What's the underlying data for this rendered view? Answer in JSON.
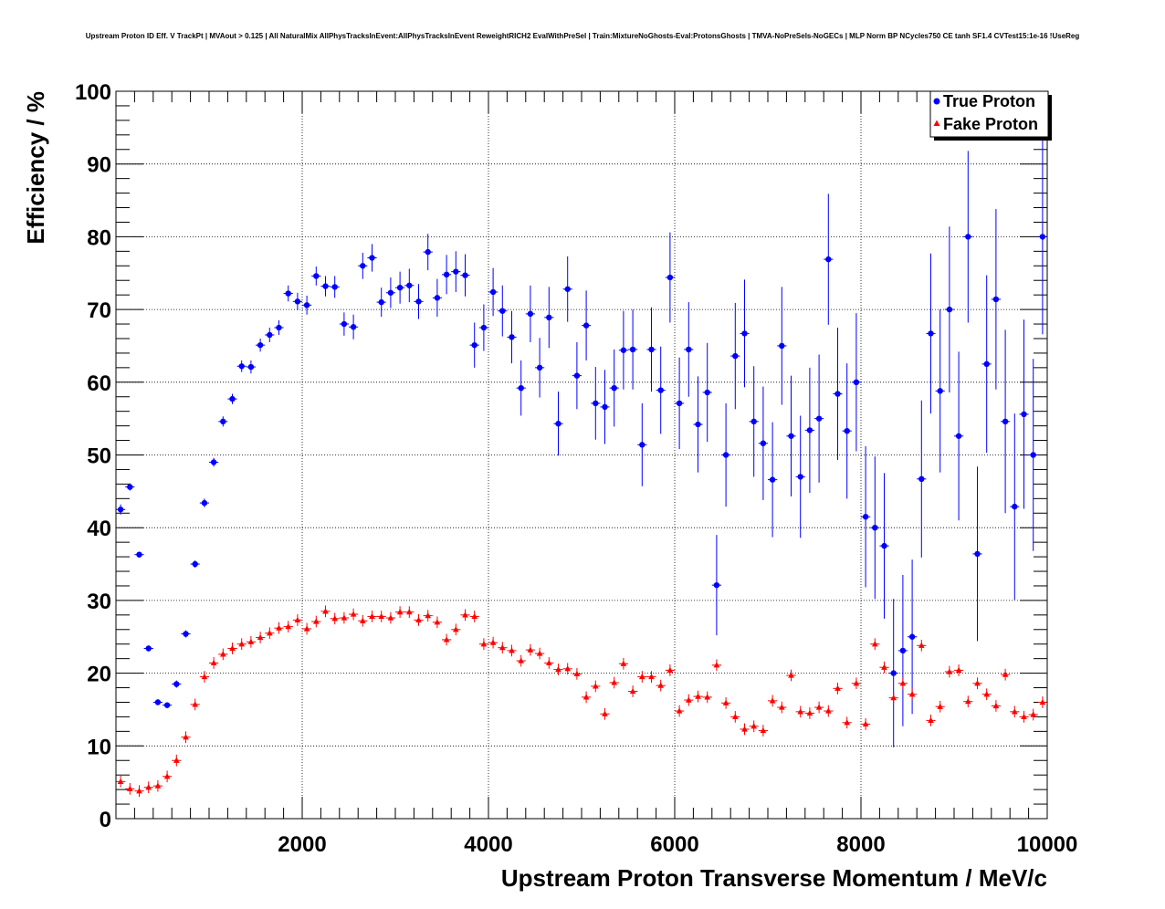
{
  "chart_data": {
    "type": "scatter",
    "title": "Upstream Proton ID Eff. V TrackPt | MVAout > 0.125 | All NaturalMix AllPhysTracksInEvent:AllPhysTracksInEvent ReweightRICH2 EvalWithPreSel | Train:MixtureNoGhosts-Eval:ProtonsGhosts | TMVA-NoPreSels-NoGECs | MLP Norm BP NCycles750 CE tanh SF1.4 CVTest15:1e-16 !UseReg",
    "xlabel": "Upstream Proton Transverse Momentum / MeV/c",
    "ylabel": "Efficiency / %",
    "xlim": [
      0,
      10000
    ],
    "ylim": [
      0,
      100
    ],
    "xticks": [
      2000,
      4000,
      6000,
      8000,
      10000
    ],
    "yticks": [
      0,
      10,
      20,
      30,
      40,
      50,
      60,
      70,
      80,
      90,
      100
    ],
    "grid": true,
    "legend_position": "top-right",
    "series": [
      {
        "name": "True Proton",
        "color": "#0000ff",
        "marker": "circle",
        "x": [
          50,
          150,
          250,
          350,
          450,
          550,
          650,
          750,
          850,
          950,
          1050,
          1150,
          1250,
          1350,
          1450,
          1550,
          1650,
          1750,
          1850,
          1950,
          2050,
          2150,
          2250,
          2350,
          2450,
          2550,
          2650,
          2750,
          2850,
          2950,
          3050,
          3150,
          3250,
          3350,
          3450,
          3550,
          3650,
          3750,
          3850,
          3950,
          4050,
          4150,
          4250,
          4350,
          4450,
          4550,
          4650,
          4750,
          4850,
          4950,
          5050,
          5150,
          5250,
          5350,
          5450,
          5550,
          5650,
          5750,
          5850,
          5950,
          6050,
          6150,
          6250,
          6350,
          6450,
          6550,
          6650,
          6750,
          6850,
          6950,
          7050,
          7150,
          7250,
          7350,
          7450,
          7550,
          7650,
          7750,
          7850,
          7950,
          8050,
          8150,
          8250,
          8350,
          8450,
          8550,
          8650,
          8750,
          8850,
          8950,
          9050,
          9150,
          9250,
          9350,
          9450,
          9550,
          9650,
          9750,
          9850,
          9950
        ],
        "y": [
          42.5,
          45.6,
          36.3,
          23.4,
          16.0,
          15.6,
          18.5,
          25.4,
          35.0,
          43.4,
          49.0,
          54.6,
          57.7,
          62.2,
          62.1,
          65.1,
          66.5,
          67.5,
          72.2,
          71.1,
          70.6,
          74.6,
          73.2,
          73.1,
          68.0,
          67.6,
          76.0,
          77.1,
          71.0,
          72.3,
          73.0,
          73.3,
          71.1,
          77.9,
          71.6,
          74.8,
          75.2,
          74.7,
          65.1,
          67.5,
          72.4,
          69.8,
          66.2,
          59.2,
          69.4,
          62.0,
          68.9,
          54.3,
          72.8,
          60.9,
          67.8,
          57.1,
          56.6,
          59.2,
          64.4,
          64.5,
          51.4,
          64.5,
          58.9,
          74.4,
          57.1,
          64.5,
          54.2,
          58.6,
          32.1,
          50.0,
          63.6,
          66.7,
          54.6,
          51.6,
          46.6,
          65.0,
          52.6,
          47.0,
          53.4,
          55.0,
          76.9,
          58.4,
          53.3,
          60.0,
          41.5,
          40.0,
          37.5,
          20.0,
          23.1,
          25.0,
          46.7,
          66.7,
          58.8,
          70.0,
          52.6,
          80.0,
          36.4,
          62.5,
          71.4,
          54.6,
          42.9,
          55.6,
          50.0,
          80.0
        ],
        "yerr": [
          0.7,
          0.5,
          0.4,
          0.4,
          0.4,
          0.4,
          0.5,
          0.5,
          0.5,
          0.6,
          0.6,
          0.7,
          0.7,
          0.8,
          0.9,
          0.9,
          1.0,
          1.0,
          1.1,
          1.2,
          1.3,
          1.3,
          1.4,
          1.5,
          1.6,
          1.7,
          1.8,
          1.9,
          2.0,
          2.1,
          2.2,
          2.3,
          2.4,
          2.5,
          2.6,
          2.7,
          2.8,
          2.9,
          3.1,
          3.2,
          3.3,
          3.5,
          3.6,
          3.8,
          3.9,
          4.1,
          4.2,
          4.4,
          4.5,
          4.6,
          4.8,
          5.0,
          5.1,
          5.3,
          5.4,
          5.5,
          5.7,
          5.8,
          6.0,
          6.2,
          6.3,
          6.5,
          6.6,
          6.8,
          6.9,
          7.1,
          7.3,
          7.4,
          7.6,
          7.8,
          7.9,
          8.1,
          8.3,
          8.4,
          8.6,
          8.8,
          9.0,
          9.1,
          9.3,
          9.5,
          9.7,
          9.8,
          10.0,
          10.2,
          10.4,
          10.6,
          10.8,
          11.0,
          11.2,
          11.4,
          11.6,
          11.8,
          12.0,
          12.2,
          12.4,
          12.6,
          12.8,
          13.0,
          13.2,
          13.4
        ]
      },
      {
        "name": "Fake Proton",
        "color": "#ff0000",
        "marker": "triangle",
        "x": [
          50,
          150,
          250,
          350,
          450,
          550,
          650,
          750,
          850,
          950,
          1050,
          1150,
          1250,
          1350,
          1450,
          1550,
          1650,
          1750,
          1850,
          1950,
          2050,
          2150,
          2250,
          2350,
          2450,
          2550,
          2650,
          2750,
          2850,
          2950,
          3050,
          3150,
          3250,
          3350,
          3450,
          3550,
          3650,
          3750,
          3850,
          3950,
          4050,
          4150,
          4250,
          4350,
          4450,
          4550,
          4650,
          4750,
          4850,
          4950,
          5050,
          5150,
          5250,
          5350,
          5450,
          5550,
          5650,
          5750,
          5850,
          5950,
          6050,
          6150,
          6250,
          6350,
          6450,
          6550,
          6650,
          6750,
          6850,
          6950,
          7050,
          7150,
          7250,
          7350,
          7450,
          7550,
          7650,
          7750,
          7850,
          7950,
          8050,
          8150,
          8250,
          8350,
          8450,
          8550,
          8650,
          8750,
          8850,
          8950,
          9050,
          9150,
          9250,
          9350,
          9450,
          9550,
          9650,
          9750,
          9850,
          9950
        ],
        "y": [
          5.1,
          4.1,
          3.8,
          4.3,
          4.5,
          5.8,
          8.0,
          11.2,
          15.7,
          19.5,
          21.4,
          22.6,
          23.4,
          24.0,
          24.3,
          24.9,
          25.5,
          26.2,
          26.4,
          27.3,
          26.1,
          27.1,
          28.5,
          27.5,
          27.6,
          28.1,
          27.2,
          27.8,
          27.8,
          27.6,
          28.4,
          28.4,
          27.3,
          27.9,
          27.0,
          24.6,
          26.0,
          28.0,
          27.8,
          24.0,
          24.2,
          23.5,
          23.1,
          21.7,
          23.2,
          22.7,
          21.4,
          20.5,
          20.6,
          19.9,
          16.7,
          18.2,
          14.4,
          18.7,
          21.3,
          17.5,
          19.5,
          19.5,
          18.3,
          20.4,
          14.8,
          16.3,
          16.8,
          16.7,
          21.1,
          15.9,
          14.0,
          12.3,
          12.7,
          12.1,
          16.2,
          15.3,
          19.7,
          14.7,
          14.5,
          15.3,
          14.8,
          17.9,
          13.2,
          18.6,
          13.0,
          24.0,
          20.8,
          16.6,
          18.6,
          17.1,
          23.8,
          13.5,
          15.4,
          20.2,
          20.4,
          16.1,
          18.6,
          17.1,
          15.5,
          19.8,
          14.7,
          14.0,
          14.3,
          16.0
        ]
      }
    ]
  }
}
